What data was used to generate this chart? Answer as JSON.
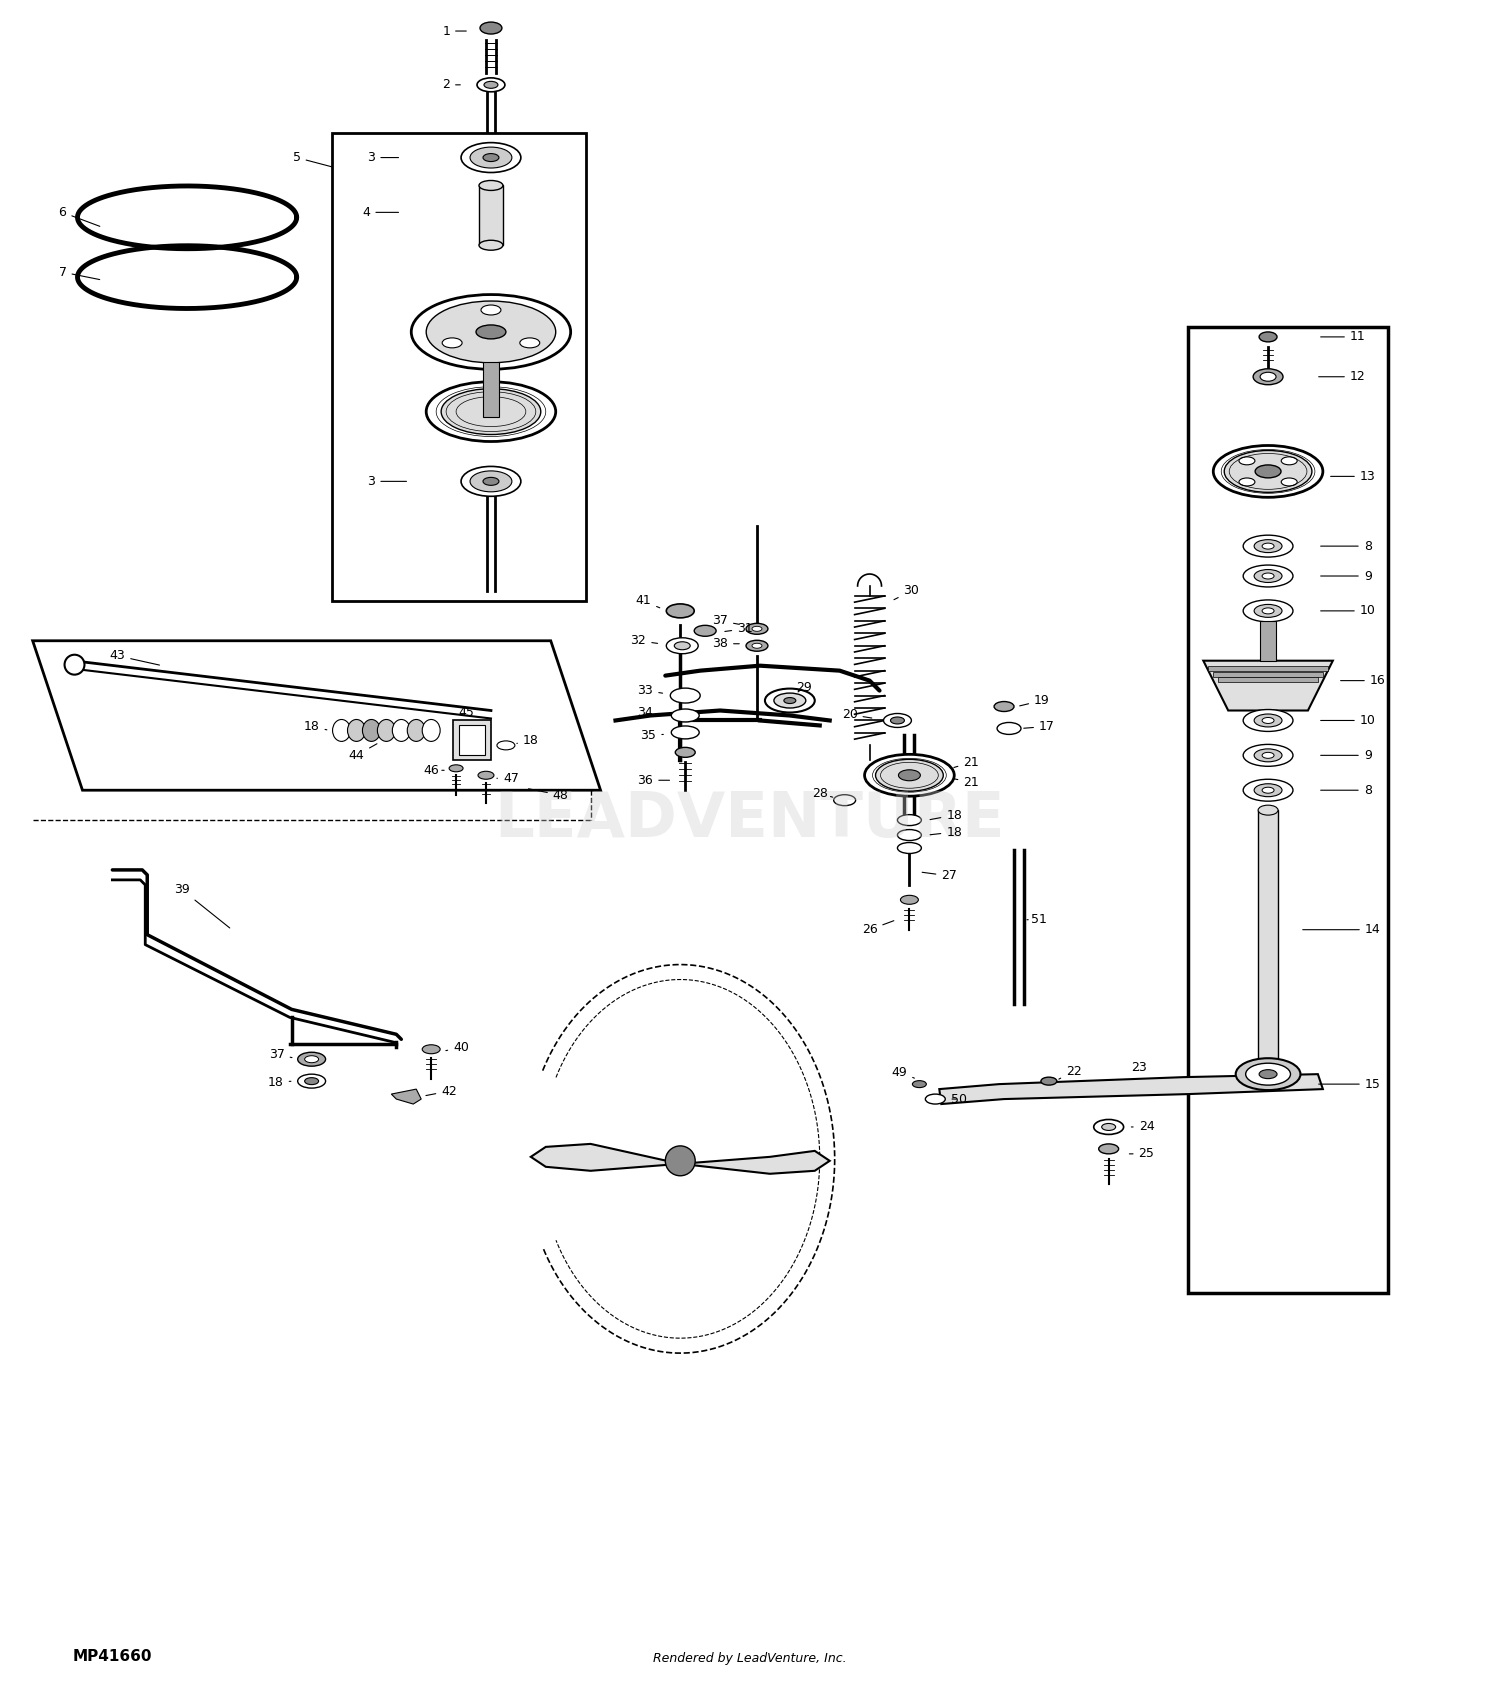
{
  "bg_color": "#ffffff",
  "fig_width": 15.0,
  "fig_height": 16.95,
  "bottom_left_text": "MP41660",
  "bottom_center_text": "Rendered by LeadVenture, Inc.",
  "watermark": "LEADVENTURE"
}
